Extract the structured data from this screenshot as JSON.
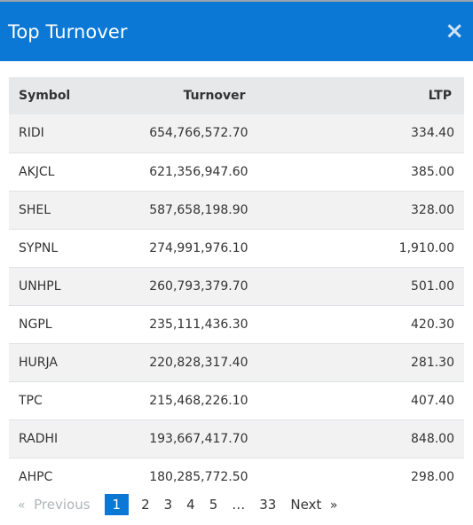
{
  "modal": {
    "title": "Top Turnover",
    "close_symbol": "×"
  },
  "table": {
    "headers": {
      "symbol": "Symbol",
      "turnover": "Turnover",
      "ltp": "LTP"
    },
    "rows": [
      {
        "symbol": "RIDI",
        "turnover": "654,766,572.70",
        "ltp": "334.40"
      },
      {
        "symbol": "AKJCL",
        "turnover": "621,356,947.60",
        "ltp": "385.00"
      },
      {
        "symbol": "SHEL",
        "turnover": "587,658,198.90",
        "ltp": "328.00"
      },
      {
        "symbol": "SYPNL",
        "turnover": "274,991,976.10",
        "ltp": "1,910.00"
      },
      {
        "symbol": "UNHPL",
        "turnover": "260,793,379.70",
        "ltp": "501.00"
      },
      {
        "symbol": "NGPL",
        "turnover": "235,111,436.30",
        "ltp": "420.30"
      },
      {
        "symbol": "HURJA",
        "turnover": "220,828,317.40",
        "ltp": "281.30"
      },
      {
        "symbol": "TPC",
        "turnover": "215,468,226.10",
        "ltp": "407.40"
      },
      {
        "symbol": "RADHI",
        "turnover": "193,667,417.70",
        "ltp": "848.00"
      },
      {
        "symbol": "AHPC",
        "turnover": "180,285,772.50",
        "ltp": "298.00"
      }
    ]
  },
  "pagination": {
    "prev_arrow": "«",
    "previous": "Previous",
    "pages": [
      "1",
      "2",
      "3",
      "4",
      "5"
    ],
    "ellipsis": "…",
    "last_page": "33",
    "next": "Next",
    "next_arrow": "»",
    "active_page": "1"
  },
  "colors": {
    "header_bg": "#0a78d4",
    "active_page_bg": "#0a78d4",
    "table_header_bg": "#e6e8ea",
    "stripe_bg": "#f2f2f2"
  }
}
